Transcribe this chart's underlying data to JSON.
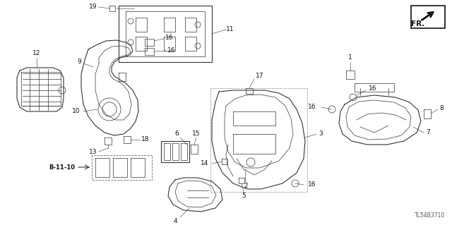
{
  "bg_color": "#ffffff",
  "diagram_id": "TL54B3710",
  "figsize": [
    6.4,
    3.19
  ],
  "dpi": 100,
  "label_color": "#111111",
  "line_color": "#333333",
  "fr_text": "FR.",
  "bbox_label": "B-11-10"
}
